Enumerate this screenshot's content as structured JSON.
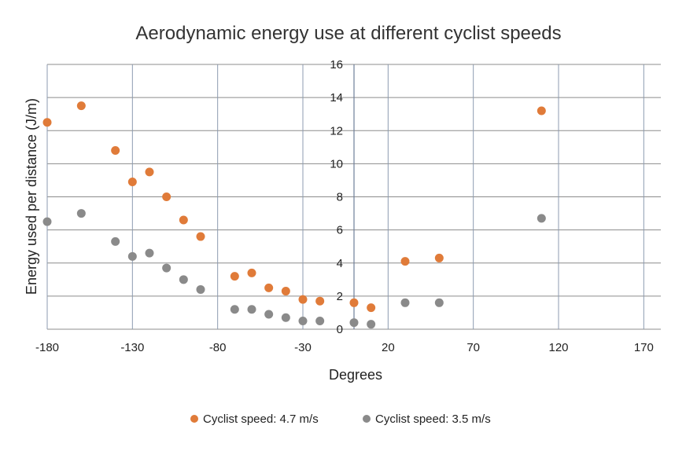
{
  "chart_data": {
    "type": "scatter",
    "title": "Aerodynamic energy use at different cyclist speeds",
    "xlabel": "Degrees",
    "ylabel": "Energy used per distance (J/m)",
    "xlim": [
      -180,
      180
    ],
    "ylim": [
      0,
      16
    ],
    "x_ticks": [
      -180,
      -130,
      -80,
      -30,
      20,
      70,
      120,
      170
    ],
    "y_ticks": [
      0,
      2,
      4,
      6,
      8,
      10,
      12,
      14,
      16
    ],
    "grid": true,
    "legend_position": "bottom",
    "series": [
      {
        "name": "Cyclist speed: 4.7 m/s",
        "color": "#E07B39",
        "points": [
          {
            "x": -180,
            "y": 12.5
          },
          {
            "x": -160,
            "y": 13.5
          },
          {
            "x": -140,
            "y": 10.8
          },
          {
            "x": -130,
            "y": 8.9
          },
          {
            "x": -120,
            "y": 9.5
          },
          {
            "x": -110,
            "y": 8.0
          },
          {
            "x": -100,
            "y": 6.6
          },
          {
            "x": -90,
            "y": 5.6
          },
          {
            "x": -70,
            "y": 3.2
          },
          {
            "x": -60,
            "y": 3.4
          },
          {
            "x": -50,
            "y": 2.5
          },
          {
            "x": -40,
            "y": 2.3
          },
          {
            "x": -30,
            "y": 1.8
          },
          {
            "x": -20,
            "y": 1.7
          },
          {
            "x": 0,
            "y": 1.6
          },
          {
            "x": 10,
            "y": 1.3
          },
          {
            "x": 30,
            "y": 4.1
          },
          {
            "x": 50,
            "y": 4.3
          },
          {
            "x": 110,
            "y": 13.2
          }
        ]
      },
      {
        "name": "Cyclist speed: 3.5 m/s",
        "color": "#8A8A8A",
        "points": [
          {
            "x": -180,
            "y": 6.5
          },
          {
            "x": -160,
            "y": 7.0
          },
          {
            "x": -140,
            "y": 5.3
          },
          {
            "x": -130,
            "y": 4.4
          },
          {
            "x": -120,
            "y": 4.6
          },
          {
            "x": -110,
            "y": 3.7
          },
          {
            "x": -100,
            "y": 3.0
          },
          {
            "x": -90,
            "y": 2.4
          },
          {
            "x": -70,
            "y": 1.2
          },
          {
            "x": -60,
            "y": 1.2
          },
          {
            "x": -50,
            "y": 0.9
          },
          {
            "x": -40,
            "y": 0.7
          },
          {
            "x": -30,
            "y": 0.5
          },
          {
            "x": -20,
            "y": 0.5
          },
          {
            "x": 0,
            "y": 0.4
          },
          {
            "x": 10,
            "y": 0.3
          },
          {
            "x": 30,
            "y": 1.6
          },
          {
            "x": 50,
            "y": 1.6
          },
          {
            "x": 110,
            "y": 6.7
          }
        ]
      }
    ]
  }
}
